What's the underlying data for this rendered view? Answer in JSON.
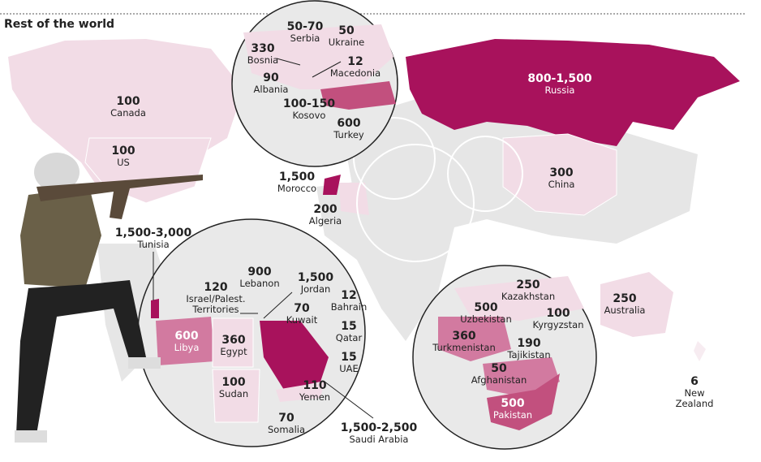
{
  "title": "Rest of the world",
  "labels": [
    {
      "value": "100",
      "name": "Canada"
    },
    {
      "value": "100",
      "name": "US"
    },
    {
      "value": "50-70",
      "name": "Serbia"
    },
    {
      "value": "50",
      "name": "Ukraine"
    },
    {
      "value": "330",
      "name": "Bosnia"
    },
    {
      "value": "12",
      "name": "Macedonia"
    },
    {
      "value": "90",
      "name": "Albania"
    },
    {
      "value": "100-150",
      "name": "Kosovo"
    },
    {
      "value": "600",
      "name": "Turkey"
    },
    {
      "value": "800-1,500",
      "name": "Russia"
    },
    {
      "value": "1,500",
      "name": "Morocco"
    },
    {
      "value": "200",
      "name": "Algeria"
    },
    {
      "value": "300",
      "name": "China"
    },
    {
      "value": "1,500-3,000",
      "name": "Tunisia"
    },
    {
      "value": "900",
      "name": "Lebanon"
    },
    {
      "value": "1,500",
      "name": "Jordan"
    },
    {
      "value": "120",
      "name": "Israel/Palest. Territories"
    },
    {
      "value": "12",
      "name": "Bahrain"
    },
    {
      "value": "70",
      "name": "Kuwait"
    },
    {
      "value": "15",
      "name": "Qatar"
    },
    {
      "value": "600",
      "name": "Libya"
    },
    {
      "value": "360",
      "name": "Egypt"
    },
    {
      "value": "15",
      "name": "UAE"
    },
    {
      "value": "100",
      "name": "Sudan"
    },
    {
      "value": "110",
      "name": "Yemen"
    },
    {
      "value": "70",
      "name": "Somalia"
    },
    {
      "value": "1,500-2,500",
      "name": "Saudi Arabia"
    },
    {
      "value": "250",
      "name": "Kazakhstan"
    },
    {
      "value": "500",
      "name": "Uzbekistan"
    },
    {
      "value": "100",
      "name": "Kyrgyzstan"
    },
    {
      "value": "360",
      "name": "Turkmenistan"
    },
    {
      "value": "190",
      "name": "Tajikistan"
    },
    {
      "value": "50",
      "name": "Afghanistan"
    },
    {
      "value": "500",
      "name": "Pakistan"
    },
    {
      "value": "250",
      "name": "Australia"
    },
    {
      "value": "6",
      "name": "New Zealand"
    }
  ]
}
